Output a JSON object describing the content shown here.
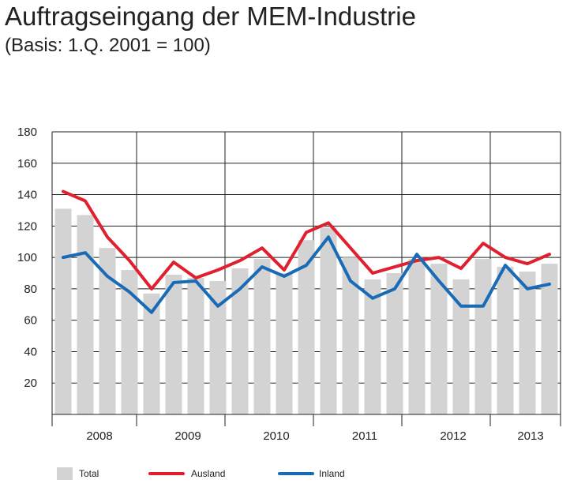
{
  "chart_data": {
    "type": "bar",
    "title": "Auftragseingang der MEM-Industrie",
    "subtitle": "(Basis: 1.Q. 2001 = 100)",
    "xlabel": "",
    "ylabel": "",
    "ylim": [
      0,
      180
    ],
    "yticks": [
      20,
      40,
      60,
      80,
      100,
      120,
      140,
      160,
      180
    ],
    "grid": true,
    "quarters": [
      "2008 Q1",
      "2008 Q2",
      "2008 Q3",
      "2008 Q4",
      "2009 Q1",
      "2009 Q2",
      "2009 Q3",
      "2009 Q4",
      "2010 Q1",
      "2010 Q2",
      "2010 Q3",
      "2010 Q4",
      "2011 Q1",
      "2011 Q2",
      "2011 Q3",
      "2011 Q4",
      "2012 Q1",
      "2012 Q2",
      "2012 Q3",
      "2012 Q4",
      "2013 Q1",
      "2013 Q2",
      "2013 Q3"
    ],
    "year_labels": [
      "2008",
      "2009",
      "2010",
      "2011",
      "2012",
      "2013"
    ],
    "series": [
      {
        "name": "Total",
        "kind": "bar",
        "color": "#d3d3d3",
        "values": [
          131,
          127,
          106,
          92,
          77,
          89,
          87,
          85,
          93,
          99,
          90,
          111,
          119,
          100,
          86,
          90,
          99,
          96,
          86,
          99,
          94,
          91,
          96
        ]
      },
      {
        "name": "Ausland",
        "kind": "line",
        "color": "#e0202e",
        "values": [
          142,
          136,
          113,
          98,
          80,
          97,
          87,
          92,
          98,
          106,
          92,
          116,
          122,
          106,
          90,
          94,
          98,
          100,
          93,
          109,
          100,
          96,
          102
        ]
      },
      {
        "name": "Inland",
        "kind": "line",
        "color": "#1a6bb5",
        "values": [
          100,
          103,
          88,
          78,
          65,
          84,
          85,
          69,
          80,
          94,
          88,
          95,
          113,
          85,
          74,
          80,
          102,
          85,
          69,
          69,
          95,
          80,
          83
        ]
      }
    ],
    "legend": [
      "Total",
      "Ausland",
      "Inland"
    ],
    "legend_position": "bottom"
  }
}
